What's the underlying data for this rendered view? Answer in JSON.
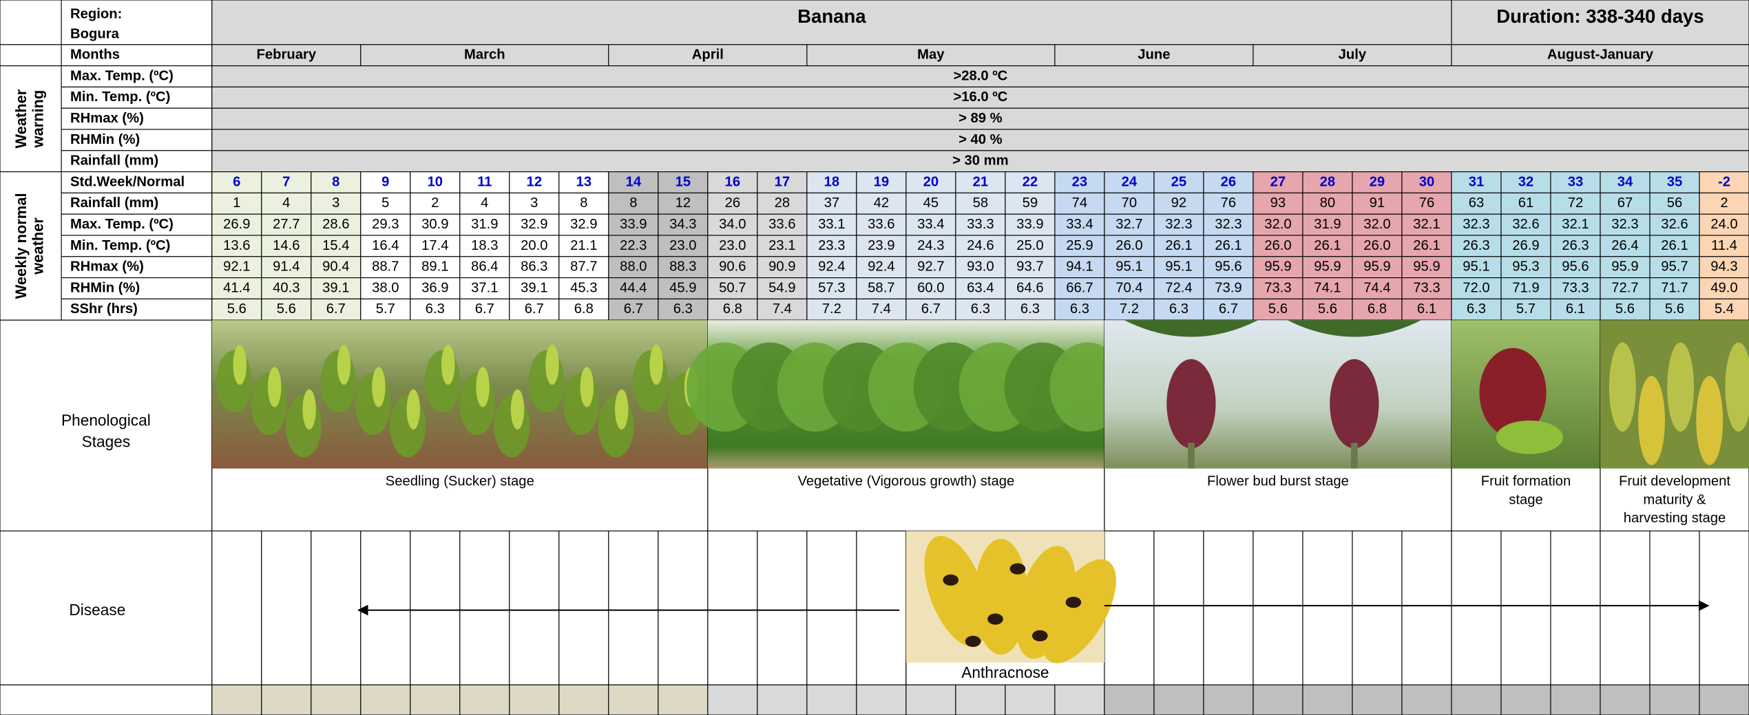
{
  "header": {
    "region": [
      "Region:",
      "Bogura"
    ],
    "crop": "Banana",
    "duration": "Duration: 338-340 days"
  },
  "months": {
    "label": "Months",
    "items": [
      "February",
      "March",
      "April",
      "May",
      "June",
      "July",
      "August-January"
    ]
  },
  "weather_warning": {
    "title": [
      "Weather",
      "warning"
    ],
    "rows": [
      {
        "label": "Max. Temp. (ºC)",
        "value": ">28.0 ºC"
      },
      {
        "label": "Min. Temp. (ºC)",
        "value": ">16.0 ºC"
      },
      {
        "label": "RHmax (%)",
        "value": "> 89 %"
      },
      {
        "label": "RHMin (%)",
        "value": "> 40 %"
      },
      {
        "label": "Rainfall (mm)",
        "value": "> 30 mm"
      }
    ]
  },
  "weekly_normal": {
    "title": [
      "Weekly normal",
      "weather"
    ],
    "rows": [
      {
        "label": "Std.Week/Normal",
        "values": [
          "6",
          "7",
          "8",
          "9",
          "10",
          "11",
          "12",
          "13",
          "14",
          "15",
          "16",
          "17",
          "18",
          "19",
          "20",
          "21",
          "22",
          "23",
          "24",
          "25",
          "26",
          "27",
          "28",
          "29",
          "30",
          "31",
          "32",
          "33",
          "34",
          "35",
          "-2"
        ]
      },
      {
        "label": "Rainfall (mm)",
        "values": [
          "1",
          "4",
          "3",
          "5",
          "2",
          "4",
          "3",
          "8",
          "8",
          "12",
          "26",
          "28",
          "37",
          "42",
          "45",
          "58",
          "59",
          "74",
          "70",
          "92",
          "76",
          "93",
          "80",
          "91",
          "76",
          "63",
          "61",
          "72",
          "67",
          "56",
          "2"
        ]
      },
      {
        "label": "Max. Temp. (ºC)",
        "values": [
          "26.9",
          "27.7",
          "28.6",
          "29.3",
          "30.9",
          "31.9",
          "32.9",
          "32.9",
          "33.9",
          "34.3",
          "34.0",
          "33.6",
          "33.1",
          "33.6",
          "33.4",
          "33.3",
          "33.9",
          "33.4",
          "32.7",
          "32.3",
          "32.3",
          "32.0",
          "31.9",
          "32.0",
          "32.1",
          "32.3",
          "32.6",
          "32.1",
          "32.3",
          "32.6",
          "24.0"
        ]
      },
      {
        "label": "Min. Temp. (ºC)",
        "values": [
          "13.6",
          "14.6",
          "15.4",
          "16.4",
          "17.4",
          "18.3",
          "20.0",
          "21.1",
          "22.3",
          "23.0",
          "23.0",
          "23.1",
          "23.3",
          "23.9",
          "24.3",
          "24.6",
          "25.0",
          "25.9",
          "26.0",
          "26.1",
          "26.1",
          "26.0",
          "26.1",
          "26.0",
          "26.1",
          "26.3",
          "26.9",
          "26.3",
          "26.4",
          "26.1",
          "11.4"
        ]
      },
      {
        "label": "RHmax (%)",
        "values": [
          "92.1",
          "91.4",
          "90.4",
          "88.7",
          "89.1",
          "86.4",
          "86.3",
          "87.7",
          "88.0",
          "88.3",
          "90.6",
          "90.9",
          "92.4",
          "92.4",
          "92.7",
          "93.0",
          "93.7",
          "94.1",
          "95.1",
          "95.1",
          "95.6",
          "95.9",
          "95.9",
          "95.9",
          "95.9",
          "95.1",
          "95.3",
          "95.6",
          "95.9",
          "95.7",
          "94.3"
        ]
      },
      {
        "label": "RHMin (%)",
        "values": [
          "41.4",
          "40.3",
          "39.1",
          "38.0",
          "36.9",
          "37.1",
          "39.1",
          "45.3",
          "44.4",
          "45.9",
          "50.7",
          "54.9",
          "57.3",
          "58.7",
          "60.0",
          "63.4",
          "64.6",
          "66.7",
          "70.4",
          "72.4",
          "73.9",
          "73.3",
          "74.1",
          "74.4",
          "73.3",
          "72.0",
          "71.9",
          "73.3",
          "72.7",
          "71.7",
          "49.0"
        ]
      },
      {
        "label": "SShr (hrs)",
        "values": [
          "5.6",
          "5.6",
          "6.7",
          "5.7",
          "6.3",
          "6.7",
          "6.7",
          "6.8",
          "6.7",
          "6.3",
          "6.8",
          "7.4",
          "7.2",
          "7.4",
          "6.7",
          "6.3",
          "6.3",
          "6.3",
          "7.2",
          "6.3",
          "6.7",
          "5.6",
          "5.6",
          "6.8",
          "6.1",
          "6.3",
          "5.7",
          "6.1",
          "5.6",
          "5.6",
          "5.4"
        ]
      }
    ]
  },
  "phenology": {
    "title": [
      "Phenological",
      "Stages"
    ],
    "stages": [
      [
        "Seedling (Sucker) stage"
      ],
      [
        "Vegetative (Vigorous growth) stage"
      ],
      [
        "Flower bud burst stage"
      ],
      [
        "Fruit formation",
        "stage"
      ],
      [
        "Fruit development",
        "maturity &",
        "harvesting  stage"
      ]
    ]
  },
  "disease": {
    "title": "Disease",
    "name": "Anthracnose"
  }
}
